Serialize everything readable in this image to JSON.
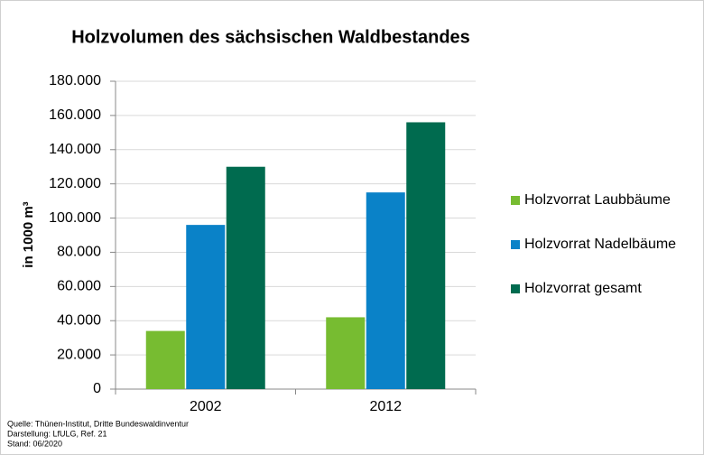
{
  "chart_data": {
    "type": "bar",
    "title": "Holzvolumen des sächsischen Waldbestandes",
    "y_label": "in 1000 m³",
    "categories": [
      "2002",
      "2012"
    ],
    "series": [
      {
        "name": "Holzvorrat Laubbäume",
        "color": "#77bc31",
        "values": [
          34000,
          42000
        ]
      },
      {
        "name": "Holzvorrat Nadelbäume",
        "color": "#0a82c8",
        "values": [
          96000,
          115000
        ]
      },
      {
        "name": "Holzvorrat gesamt",
        "color": "#006b4f",
        "values": [
          130000,
          156000
        ]
      }
    ],
    "ylim": [
      0,
      180000
    ],
    "yticks": [
      0,
      {
        "value": 20000,
        "label": "20.000"
      },
      {
        "value": 40000,
        "label": "40.000"
      },
      {
        "value": 60000,
        "label": "60.000"
      },
      {
        "value": 80000,
        "label": "80.000"
      },
      {
        "value": 100000,
        "label": "100.000"
      },
      {
        "value": 120000,
        "label": "120.000"
      },
      {
        "value": 140000,
        "label": "140.000"
      },
      {
        "value": 160000,
        "label": "160.000"
      },
      {
        "value": 180000,
        "label": "180.000"
      }
    ],
    "grid": true,
    "legend": "right",
    "notes": [
      "Quelle:  Thünen-Institut,  Dritte Bundeswaldinventur",
      "Darstellung:  LfULG, Ref. 21",
      "Stand:  06/2020"
    ]
  }
}
